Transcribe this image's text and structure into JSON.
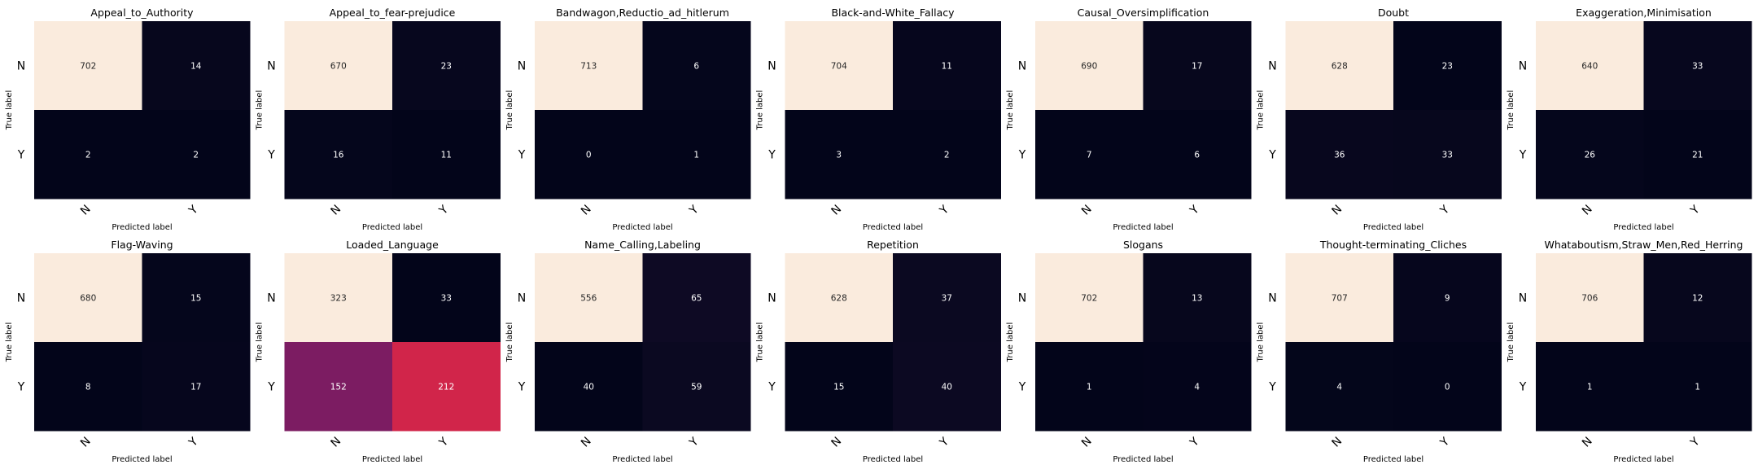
{
  "shared": {
    "xlabel": "Predicted label",
    "ylabel": "True label",
    "tick_labels": [
      "N",
      "Y"
    ]
  },
  "chart_data": [
    {
      "type": "heatmap",
      "title": "Appeal_to_Authority",
      "xlabel": "Predicted label",
      "ylabel": "True label",
      "x_categories": [
        "N",
        "Y"
      ],
      "y_categories": [
        "N",
        "Y"
      ],
      "values": [
        [
          702,
          14
        ],
        [
          2,
          2
        ]
      ]
    },
    {
      "type": "heatmap",
      "title": "Appeal_to_fear-prejudice",
      "xlabel": "Predicted label",
      "ylabel": "True label",
      "x_categories": [
        "N",
        "Y"
      ],
      "y_categories": [
        "N",
        "Y"
      ],
      "values": [
        [
          670,
          23
        ],
        [
          16,
          11
        ]
      ]
    },
    {
      "type": "heatmap",
      "title": "Bandwagon,Reductio_ad_hitlerum",
      "xlabel": "Predicted label",
      "ylabel": "True label",
      "x_categories": [
        "N",
        "Y"
      ],
      "y_categories": [
        "N",
        "Y"
      ],
      "values": [
        [
          713,
          6
        ],
        [
          0,
          1
        ]
      ]
    },
    {
      "type": "heatmap",
      "title": "Black-and-White_Fallacy",
      "xlabel": "Predicted label",
      "ylabel": "True label",
      "x_categories": [
        "N",
        "Y"
      ],
      "y_categories": [
        "N",
        "Y"
      ],
      "values": [
        [
          704,
          11
        ],
        [
          3,
          2
        ]
      ]
    },
    {
      "type": "heatmap",
      "title": "Causal_Oversimplification",
      "xlabel": "Predicted label",
      "ylabel": "True label",
      "x_categories": [
        "N",
        "Y"
      ],
      "y_categories": [
        "N",
        "Y"
      ],
      "values": [
        [
          690,
          17
        ],
        [
          7,
          6
        ]
      ]
    },
    {
      "type": "heatmap",
      "title": "Doubt",
      "xlabel": "Predicted label",
      "ylabel": "True label",
      "x_categories": [
        "N",
        "Y"
      ],
      "y_categories": [
        "N",
        "Y"
      ],
      "values": [
        [
          628,
          23
        ],
        [
          36,
          33
        ]
      ]
    },
    {
      "type": "heatmap",
      "title": "Exaggeration,Minimisation",
      "xlabel": "Predicted label",
      "ylabel": "True label",
      "x_categories": [
        "N",
        "Y"
      ],
      "y_categories": [
        "N",
        "Y"
      ],
      "values": [
        [
          640,
          33
        ],
        [
          26,
          21
        ]
      ]
    },
    {
      "type": "heatmap",
      "title": "Flag-Waving",
      "xlabel": "Predicted label",
      "ylabel": "True label",
      "x_categories": [
        "N",
        "Y"
      ],
      "y_categories": [
        "N",
        "Y"
      ],
      "values": [
        [
          680,
          15
        ],
        [
          8,
          17
        ]
      ]
    },
    {
      "type": "heatmap",
      "title": "Loaded_Language",
      "xlabel": "Predicted label",
      "ylabel": "True label",
      "x_categories": [
        "N",
        "Y"
      ],
      "y_categories": [
        "N",
        "Y"
      ],
      "values": [
        [
          323,
          33
        ],
        [
          152,
          212
        ]
      ]
    },
    {
      "type": "heatmap",
      "title": "Name_Calling,Labeling",
      "xlabel": "Predicted label",
      "ylabel": "True label",
      "x_categories": [
        "N",
        "Y"
      ],
      "y_categories": [
        "N",
        "Y"
      ],
      "values": [
        [
          556,
          65
        ],
        [
          40,
          59
        ]
      ]
    },
    {
      "type": "heatmap",
      "title": "Repetition",
      "xlabel": "Predicted label",
      "ylabel": "True label",
      "x_categories": [
        "N",
        "Y"
      ],
      "y_categories": [
        "N",
        "Y"
      ],
      "values": [
        [
          628,
          37
        ],
        [
          15,
          40
        ]
      ]
    },
    {
      "type": "heatmap",
      "title": "Slogans",
      "xlabel": "Predicted label",
      "ylabel": "True label",
      "x_categories": [
        "N",
        "Y"
      ],
      "y_categories": [
        "N",
        "Y"
      ],
      "values": [
        [
          702,
          13
        ],
        [
          1,
          4
        ]
      ]
    },
    {
      "type": "heatmap",
      "title": "Thought-terminating_Cliches",
      "xlabel": "Predicted label",
      "ylabel": "True label",
      "x_categories": [
        "N",
        "Y"
      ],
      "y_categories": [
        "N",
        "Y"
      ],
      "values": [
        [
          707,
          9
        ],
        [
          4,
          0
        ]
      ]
    },
    {
      "type": "heatmap",
      "title": "Whataboutism,Straw_Men,Red_Herring",
      "xlabel": "Predicted label",
      "ylabel": "True label",
      "x_categories": [
        "N",
        "Y"
      ],
      "y_categories": [
        "N",
        "Y"
      ],
      "values": [
        [
          706,
          12
        ],
        [
          1,
          1
        ]
      ]
    }
  ]
}
